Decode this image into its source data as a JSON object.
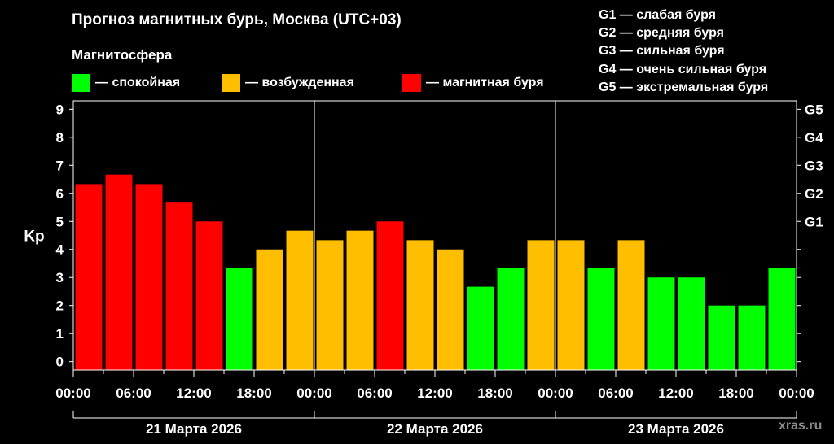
{
  "title": "Прогноз магнитных бурь, Москва (UTC+03)",
  "subtitle": "Магнитосфера",
  "colors": {
    "calm": "#00ff00",
    "excited": "#ffbf00",
    "storm": "#ff0000",
    "background": "#000000",
    "axis": "#ffffff",
    "watermark": "#8a8a8a"
  },
  "legend": [
    {
      "label": "— спокойная",
      "color": "#00ff00"
    },
    {
      "label": "— возбужденная",
      "color": "#ffbf00"
    },
    {
      "label": "— магнитная буря",
      "color": "#ff0000"
    }
  ],
  "storm_scale": [
    "G1 — слабая буря",
    "G2 — средняя буря",
    "G3 — сильная буря",
    "G4 — очень сильная буря",
    "G5 — экстремальная буря"
  ],
  "watermark": "xras.ru",
  "chart_data": {
    "type": "bar",
    "ylabel": "Kp",
    "ylim": [
      -0.3,
      9.3
    ],
    "yticks": [
      0,
      1,
      2,
      3,
      4,
      5,
      6,
      7,
      8,
      9
    ],
    "right_axis": {
      "ticks": [
        {
          "kp": 5,
          "label": "G1"
        },
        {
          "kp": 6,
          "label": "G2"
        },
        {
          "kp": 7,
          "label": "G3"
        },
        {
          "kp": 8,
          "label": "G4"
        },
        {
          "kp": 9,
          "label": "G5"
        }
      ]
    },
    "grid": "vertical lines at day boundaries",
    "xtick_labels": [
      "00:00",
      "06:00",
      "12:00",
      "18:00",
      "00:00",
      "06:00",
      "12:00",
      "18:00",
      "00:00",
      "06:00",
      "12:00",
      "18:00",
      "00:00"
    ],
    "days": [
      "21 Марта 2026",
      "22 Марта 2026",
      "23 Марта 2026"
    ],
    "series": [
      {
        "values": [
          6.33,
          6.67,
          6.33,
          5.67,
          5.0,
          3.33,
          4.0,
          4.67,
          4.33,
          4.67,
          5.0,
          4.33,
          4.0,
          2.67,
          3.33,
          4.33,
          4.33,
          3.33,
          4.33,
          3.0,
          3.0,
          2.0,
          2.0,
          3.33
        ],
        "levels": [
          "storm",
          "storm",
          "storm",
          "storm",
          "storm",
          "calm",
          "excited",
          "excited",
          "excited",
          "excited",
          "storm",
          "excited",
          "excited",
          "calm",
          "calm",
          "excited",
          "excited",
          "calm",
          "excited",
          "calm",
          "calm",
          "calm",
          "calm",
          "calm"
        ]
      }
    ]
  }
}
